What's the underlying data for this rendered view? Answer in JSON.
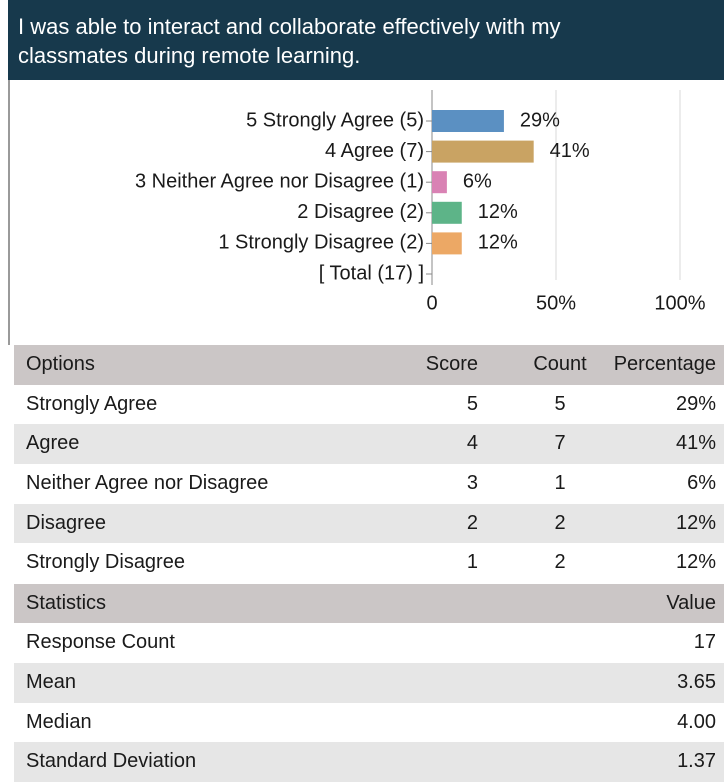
{
  "header": {
    "title": "I was able to interact and collaborate effectively with my classmates during remote learning."
  },
  "chart_data": {
    "type": "bar",
    "orientation": "horizontal",
    "categories": [
      "5 Strongly Agree (5)",
      "4 Agree (7)",
      "3 Neither Agree nor Disagree (1)",
      "2 Disagree (2)",
      "1 Strongly Disagree (2)",
      "[ Total (17) ]"
    ],
    "values": [
      29,
      41,
      6,
      12,
      12,
      null
    ],
    "value_labels": [
      "29%",
      "41%",
      "6%",
      "12%",
      "12%",
      null
    ],
    "colors": [
      "#5b90c2",
      "#c9a363",
      "#d982b4",
      "#5db488",
      "#eca865",
      null
    ],
    "xlim": [
      0,
      100
    ],
    "xticks": [
      0,
      {
        "value": 50,
        "label": "50%"
      },
      {
        "value": 100,
        "label": "100%"
      }
    ],
    "grid": true
  },
  "options_table": {
    "columns": [
      "Options",
      "Score",
      "Count",
      "Percentage"
    ],
    "rows": [
      [
        "Strongly Agree",
        "5",
        "5",
        "29%"
      ],
      [
        "Agree",
        "4",
        "7",
        "41%"
      ],
      [
        "Neither Agree nor Disagree",
        "3",
        "1",
        "6%"
      ],
      [
        "Disagree",
        "2",
        "2",
        "12%"
      ],
      [
        "Strongly Disagree",
        "1",
        "2",
        "12%"
      ]
    ]
  },
  "stats_table": {
    "columns": [
      "Statistics",
      "Value"
    ],
    "rows": [
      [
        "Response Count",
        "17"
      ],
      [
        "Mean",
        "3.65"
      ],
      [
        "Median",
        "4.00"
      ],
      [
        "Standard Deviation",
        "1.37"
      ]
    ]
  }
}
